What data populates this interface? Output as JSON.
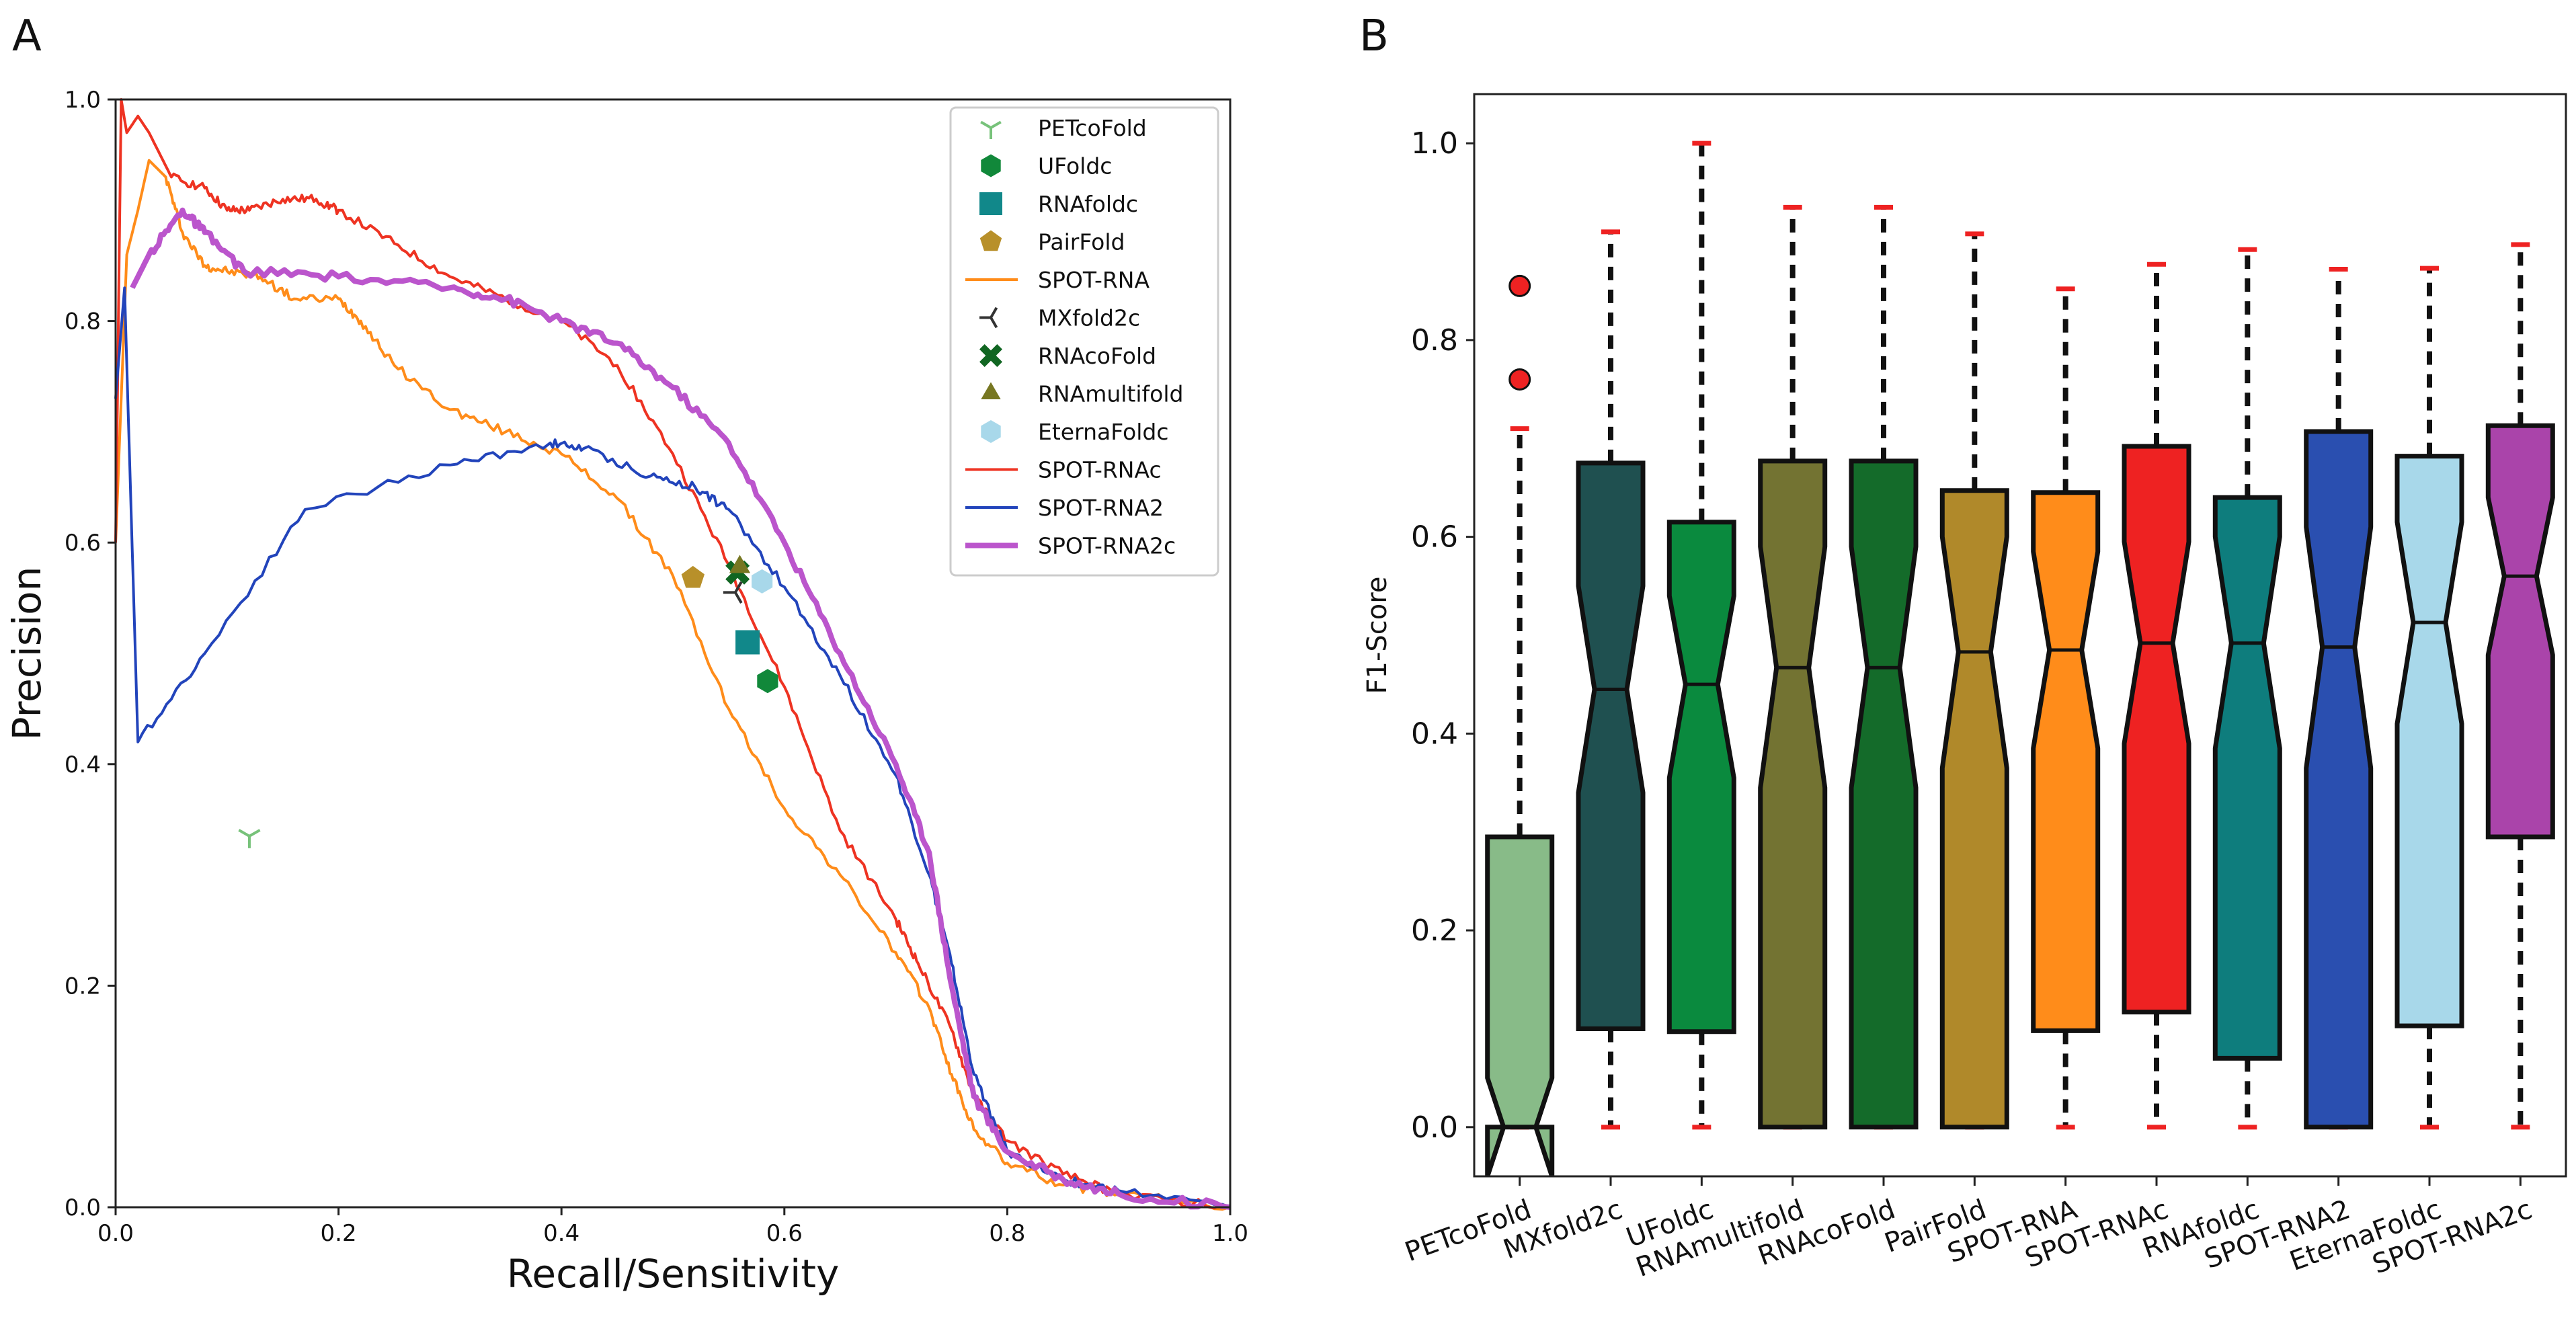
{
  "panels": {
    "a": "A",
    "b": "B"
  },
  "chart_data": [
    {
      "type": "line",
      "panel": "A",
      "xlabel": "Recall/Sensitivity",
      "ylabel": "Precision",
      "xlim": [
        0,
        1.0
      ],
      "ylim": [
        0,
        1.0
      ],
      "xticks": [
        "0.0",
        "0.2",
        "0.4",
        "0.6",
        "0.8",
        "1.0"
      ],
      "yticks": [
        "0.0",
        "0.2",
        "0.4",
        "0.6",
        "0.8",
        "1.0"
      ],
      "legend_position": "top-right",
      "grid": false,
      "series": [
        {
          "name": "SPOT-RNA",
          "color": "#ff8c1a",
          "x": [
            0.0,
            0.01,
            0.02,
            0.03,
            0.045,
            0.06,
            0.08,
            0.1,
            0.13,
            0.16,
            0.2,
            0.22,
            0.25,
            0.3,
            0.35,
            0.4,
            0.45,
            0.5,
            0.55,
            0.6,
            0.65,
            0.7,
            0.73,
            0.75,
            0.77,
            0.8,
            0.85,
            0.9,
            1.0
          ],
          "y": [
            0.6,
            0.86,
            0.9,
            0.945,
            0.93,
            0.88,
            0.85,
            0.845,
            0.84,
            0.82,
            0.82,
            0.8,
            0.76,
            0.72,
            0.7,
            0.68,
            0.64,
            0.57,
            0.45,
            0.36,
            0.3,
            0.23,
            0.18,
            0.12,
            0.07,
            0.04,
            0.02,
            0.012,
            0.0
          ]
        },
        {
          "name": "SPOT-RNAc",
          "color": "#ee3322",
          "x": [
            0.0,
            0.005,
            0.01,
            0.02,
            0.03,
            0.05,
            0.08,
            0.1,
            0.12,
            0.15,
            0.18,
            0.2,
            0.25,
            0.3,
            0.35,
            0.4,
            0.45,
            0.5,
            0.55,
            0.6,
            0.65,
            0.7,
            0.72,
            0.75,
            0.77,
            0.8,
            0.85,
            0.9,
            1.0
          ],
          "y": [
            0.6,
            1.0,
            0.97,
            0.985,
            0.97,
            0.93,
            0.92,
            0.9,
            0.9,
            0.91,
            0.91,
            0.9,
            0.87,
            0.84,
            0.82,
            0.8,
            0.76,
            0.68,
            0.58,
            0.47,
            0.34,
            0.26,
            0.22,
            0.16,
            0.1,
            0.06,
            0.03,
            0.012,
            0.0
          ]
        },
        {
          "name": "SPOT-RNA2",
          "color": "#2244bb",
          "x": [
            0.0,
            0.008,
            0.02,
            0.08,
            0.17,
            0.3,
            0.39,
            0.42,
            0.48,
            0.52,
            0.55,
            0.6,
            0.65,
            0.7,
            0.73,
            0.75,
            0.77,
            0.8,
            0.85,
            0.9,
            1.0
          ],
          "y": [
            0.73,
            0.83,
            0.42,
            0.5,
            0.63,
            0.67,
            0.69,
            0.685,
            0.66,
            0.65,
            0.63,
            0.56,
            0.48,
            0.39,
            0.3,
            0.22,
            0.12,
            0.05,
            0.025,
            0.015,
            0.0
          ]
        },
        {
          "name": "SPOT-RNA2c",
          "color": "#bb55cc",
          "x": [
            0.015,
            0.03,
            0.06,
            0.08,
            0.115,
            0.2,
            0.3,
            0.35,
            0.4,
            0.45,
            0.5,
            0.55,
            0.6,
            0.65,
            0.7,
            0.73,
            0.75,
            0.77,
            0.8,
            0.85,
            0.9,
            1.0
          ],
          "y": [
            0.83,
            0.86,
            0.9,
            0.88,
            0.845,
            0.84,
            0.83,
            0.82,
            0.8,
            0.78,
            0.74,
            0.69,
            0.6,
            0.5,
            0.4,
            0.32,
            0.2,
            0.1,
            0.05,
            0.025,
            0.012,
            0.0
          ]
        }
      ],
      "markers": [
        {
          "name": "PETcoFold",
          "shape": "tri_down",
          "color": "#77c27a",
          "x": 0.12,
          "y": 0.335
        },
        {
          "name": "UFoldc",
          "shape": "hexagon",
          "color": "#11883a",
          "x": 0.585,
          "y": 0.475
        },
        {
          "name": "RNAfoldc",
          "shape": "square",
          "color": "#11888a",
          "x": 0.567,
          "y": 0.51
        },
        {
          "name": "PairFold",
          "shape": "pentagon",
          "color": "#b8902a",
          "x": 0.518,
          "y": 0.568
        },
        {
          "name": "MXfold2c",
          "shape": "tri_left",
          "color": "#333333",
          "x": 0.556,
          "y": 0.555
        },
        {
          "name": "RNAcoFold",
          "shape": "x",
          "color": "#116622",
          "x": 0.558,
          "y": 0.573
        },
        {
          "name": "RNAmultifold",
          "shape": "triangle",
          "color": "#777722",
          "x": 0.56,
          "y": 0.578
        },
        {
          "name": "EternaFoldc",
          "shape": "hexagon",
          "color": "#a8d8ea",
          "x": 0.58,
          "y": 0.565
        }
      ],
      "legend": [
        {
          "name": "PETcoFold",
          "kind": "marker",
          "shape": "tri_down",
          "color": "#77c27a"
        },
        {
          "name": "UFoldc",
          "kind": "marker",
          "shape": "hexagon",
          "color": "#11883a"
        },
        {
          "name": "RNAfoldc",
          "kind": "marker",
          "shape": "square",
          "color": "#11888a"
        },
        {
          "name": "PairFold",
          "kind": "marker",
          "shape": "pentagon",
          "color": "#b8902a"
        },
        {
          "name": "SPOT-RNA",
          "kind": "line",
          "color": "#ff8c1a"
        },
        {
          "name": "MXfold2c",
          "kind": "marker",
          "shape": "tri_left",
          "color": "#333333"
        },
        {
          "name": "RNAcoFold",
          "kind": "marker",
          "shape": "x",
          "color": "#116622"
        },
        {
          "name": "RNAmultifold",
          "kind": "marker",
          "shape": "triangle",
          "color": "#777722"
        },
        {
          "name": "EternaFoldc",
          "kind": "marker",
          "shape": "hexagon",
          "color": "#a8d8ea"
        },
        {
          "name": "SPOT-RNAc",
          "kind": "line",
          "color": "#ee3322"
        },
        {
          "name": "SPOT-RNA2",
          "kind": "line",
          "color": "#2244bb"
        },
        {
          "name": "SPOT-RNA2c",
          "kind": "line",
          "color": "#bb55cc",
          "thick": true
        }
      ]
    },
    {
      "type": "box",
      "panel": "B",
      "ylabel": "F1-Score",
      "ylim": [
        -0.05,
        1.05
      ],
      "yticks": [
        "0.0",
        "0.2",
        "0.4",
        "0.6",
        "0.8",
        "1.0"
      ],
      "notched": true,
      "grid": false,
      "boxes": [
        {
          "category": "PETcoFold",
          "color": "#88bb88",
          "whislo": 0.0,
          "q1": 0.0,
          "med": 0.0,
          "q3": 0.295,
          "whishi": 0.71,
          "notch_lo": -0.05,
          "notch_hi": 0.05,
          "fliers": [
            0.76,
            0.855
          ]
        },
        {
          "category": "MXfold2c",
          "color": "#1f5050",
          "whislo": 0.0,
          "q1": 0.1,
          "med": 0.445,
          "q3": 0.675,
          "whishi": 0.91,
          "notch_lo": 0.34,
          "notch_hi": 0.55,
          "fliers": []
        },
        {
          "category": "UFoldc",
          "color": "#0a8a3e",
          "whislo": 0.0,
          "q1": 0.097,
          "med": 0.45,
          "q3": 0.615,
          "whishi": 1.0,
          "notch_lo": 0.355,
          "notch_hi": 0.54,
          "fliers": []
        },
        {
          "category": "RNAmultifold",
          "color": "#737332",
          "whislo": 0.0,
          "q1": 0.0,
          "med": 0.467,
          "q3": 0.677,
          "whishi": 0.935,
          "notch_lo": 0.345,
          "notch_hi": 0.59,
          "fliers": []
        },
        {
          "category": "RNAcoFold",
          "color": "#146b2a",
          "whislo": 0.0,
          "q1": 0.0,
          "med": 0.467,
          "q3": 0.677,
          "whishi": 0.935,
          "notch_lo": 0.345,
          "notch_hi": 0.59,
          "fliers": []
        },
        {
          "category": "PairFold",
          "color": "#b0892a",
          "whislo": 0.0,
          "q1": 0.0,
          "med": 0.483,
          "q3": 0.647,
          "whishi": 0.908,
          "notch_lo": 0.365,
          "notch_hi": 0.6,
          "fliers": []
        },
        {
          "category": "SPOT-RNA",
          "color": "#ff8c1a",
          "whislo": 0.0,
          "q1": 0.098,
          "med": 0.485,
          "q3": 0.645,
          "whishi": 0.852,
          "notch_lo": 0.385,
          "notch_hi": 0.585,
          "fliers": []
        },
        {
          "category": "SPOT-RNAc",
          "color": "#ee2222",
          "whislo": 0.0,
          "q1": 0.117,
          "med": 0.492,
          "q3": 0.692,
          "whishi": 0.877,
          "notch_lo": 0.39,
          "notch_hi": 0.595,
          "fliers": []
        },
        {
          "category": "RNAfoldc",
          "color": "#0e7d7d",
          "whislo": 0.0,
          "q1": 0.07,
          "med": 0.492,
          "q3": 0.64,
          "whishi": 0.892,
          "notch_lo": 0.385,
          "notch_hi": 0.6,
          "fliers": []
        },
        {
          "category": "SPOT-RNA2",
          "color": "#2a4fb0",
          "whislo": 0.0,
          "q1": 0.0,
          "med": 0.488,
          "q3": 0.707,
          "whishi": 0.872,
          "notch_lo": 0.365,
          "notch_hi": 0.61,
          "fliers": []
        },
        {
          "category": "EternaFoldc",
          "color": "#a8d8ea",
          "whislo": 0.0,
          "q1": 0.103,
          "med": 0.513,
          "q3": 0.682,
          "whishi": 0.873,
          "notch_lo": 0.41,
          "notch_hi": 0.615,
          "fliers": []
        },
        {
          "category": "SPOT-RNA2c",
          "color": "#aa44aa",
          "whislo": 0.0,
          "q1": 0.295,
          "med": 0.56,
          "q3": 0.713,
          "whishi": 0.897,
          "notch_lo": 0.48,
          "notch_hi": 0.64,
          "fliers": []
        }
      ]
    }
  ]
}
